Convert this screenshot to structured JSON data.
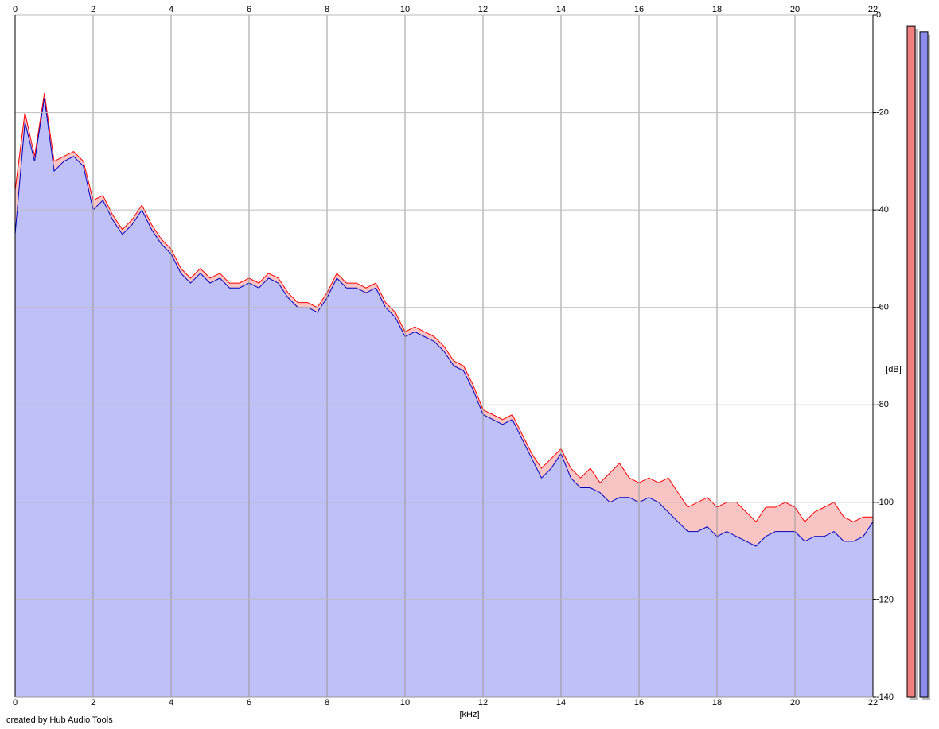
{
  "chart_data": {
    "type": "spectrum",
    "x_label": "[kHz]",
    "y_label": "[dB]",
    "footer": "created by Hub Audio Tools",
    "xlim": [
      0,
      22
    ],
    "xticks": [
      0,
      2,
      4,
      6,
      8,
      10,
      12,
      14,
      16,
      18,
      20,
      22
    ],
    "ylim": [
      -140,
      0
    ],
    "yticks": [
      0,
      -20,
      -40,
      -60,
      -80,
      -100,
      -120,
      -140
    ],
    "grid": true,
    "x": [
      0,
      0.25,
      0.5,
      0.75,
      1,
      1.25,
      1.5,
      1.75,
      2,
      2.25,
      2.5,
      2.75,
      3,
      3.25,
      3.5,
      3.75,
      4,
      4.25,
      4.5,
      4.75,
      5,
      5.25,
      5.5,
      5.75,
      6,
      6.25,
      6.5,
      6.75,
      7,
      7.25,
      7.5,
      7.75,
      8,
      8.25,
      8.5,
      8.75,
      9,
      9.25,
      9.5,
      9.75,
      10,
      10.25,
      10.5,
      10.75,
      11,
      11.25,
      11.5,
      11.75,
      12,
      12.25,
      12.5,
      12.75,
      13,
      13.25,
      13.5,
      13.75,
      14,
      14.25,
      14.5,
      14.75,
      15,
      15.25,
      15.5,
      15.75,
      16,
      16.25,
      16.5,
      16.75,
      17,
      17.25,
      17.5,
      17.75,
      18,
      18.25,
      18.5,
      18.75,
      19,
      19.25,
      19.5,
      19.75,
      20,
      20.25,
      20.5,
      20.75,
      21,
      21.25,
      21.5,
      21.75,
      22
    ],
    "series": [
      {
        "color": "#ff0000",
        "fill": "#f8c4c4",
        "values": [
          -36,
          -20,
          -29,
          -16,
          -30,
          -29,
          -28,
          -30,
          -38,
          -37,
          -41,
          -44,
          -42,
          -39,
          -43,
          -46,
          -48,
          -52,
          -54,
          -52,
          -54,
          -53,
          -55,
          -55,
          -54,
          -55,
          -53,
          -54,
          -57,
          -59,
          -59,
          -60,
          -57,
          -53,
          -55,
          -55,
          -56,
          -55,
          -59,
          -61,
          -65,
          -64,
          -65,
          -66,
          -68,
          -71,
          -72,
          -76,
          -81,
          -82,
          -83,
          -82,
          -86,
          -90,
          -93,
          -91,
          -89,
          -93,
          -95,
          -93,
          -96,
          -94,
          -92,
          -95,
          -96,
          -95,
          -96,
          -95,
          -98,
          -101,
          -100,
          -99,
          -101,
          -100,
          -100,
          -102,
          -104,
          -101,
          -101,
          -100,
          -101,
          -104,
          -102,
          -101,
          -100,
          -103,
          -104,
          -103,
          -103
        ]
      },
      {
        "color": "#0000c0",
        "fill": "#c0c0f8",
        "values": [
          -45,
          -22,
          -30,
          -17,
          -32,
          -30,
          -29,
          -31,
          -40,
          -38,
          -42,
          -45,
          -43,
          -40,
          -44,
          -47,
          -49,
          -53,
          -55,
          -53,
          -55,
          -54,
          -56,
          -56,
          -55,
          -56,
          -54,
          -55,
          -58,
          -60,
          -60,
          -61,
          -58,
          -54,
          -56,
          -56,
          -57,
          -56,
          -60,
          -62,
          -66,
          -65,
          -66,
          -67,
          -69,
          -72,
          -73,
          -77,
          -82,
          -83,
          -84,
          -83,
          -87,
          -91,
          -95,
          -93,
          -90,
          -95,
          -97,
          -97,
          -98,
          -100,
          -99,
          -99,
          -100,
          -99,
          -100,
          -102,
          -104,
          -106,
          -106,
          -105,
          -107,
          -106,
          -107,
          -108,
          -109,
          -107,
          -106,
          -106,
          -106,
          -108,
          -107,
          -107,
          -106,
          -108,
          -108,
          -107,
          -104
        ]
      }
    ],
    "meters": [
      {
        "color": "#f08080",
        "value": -2.3
      },
      {
        "color": "#8c8cec",
        "value": -3.4
      }
    ]
  }
}
